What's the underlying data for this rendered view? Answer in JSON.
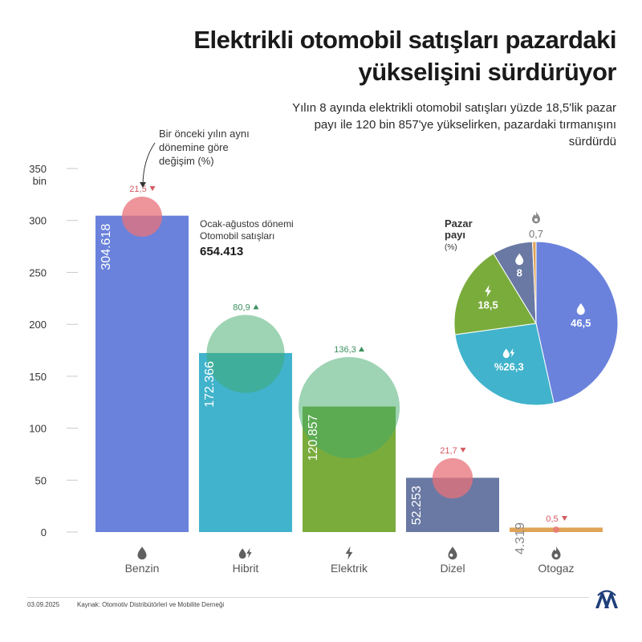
{
  "title": "Elektrikli otomobil satışları pazardaki yükselişini sürdürüyor",
  "subtitle": "Yılın 8 ayında elektrikli otomobil satışları yüzde 18,5'lik pazar payı ile 120 bin 857'ye yükselirken, pazardaki tırmanışını sürdürdü",
  "annotation_change": [
    "Bir önceki yılın aynı",
    "dönemine göre",
    "değişim (%)"
  ],
  "total_label": [
    "Ocak-ağustos dönemi",
    "Otomobil satışları"
  ],
  "total_value": "654.413",
  "pie_title": [
    "Pazar",
    "payı",
    "(%)"
  ],
  "footer": {
    "date": "03.09.2025",
    "source": "Kaynak: Otomotiv Distribütörleri ve Mobilite Derneği"
  },
  "colors": {
    "up": "#3daa6a",
    "down": "#e8727a",
    "up_text": "#3a8f5c",
    "down_text": "#d45a62"
  },
  "chart_data": [
    {
      "type": "bar",
      "categories": [
        "Benzin",
        "Hibrit",
        "Elektrik",
        "Dizel",
        "Otogaz"
      ],
      "icons": [
        "drop-icon",
        "hybrid-icon",
        "bolt-icon",
        "diesel-drop-icon",
        "flame-icon"
      ],
      "values": [
        304618,
        172366,
        120857,
        52253,
        4319
      ],
      "value_labels": [
        "304.618",
        "172.366",
        "120.857",
        "52.253",
        "4.319"
      ],
      "colors": [
        "#6a82dc",
        "#41b3cc",
        "#7aac3c",
        "#6979a3",
        "#e0a458"
      ],
      "change": [
        {
          "label": "21,5",
          "direction": "down",
          "value": -21.5
        },
        {
          "label": "80,9",
          "direction": "up",
          "value": 80.9
        },
        {
          "label": "136,3",
          "direction": "up",
          "value": 136.3
        },
        {
          "label": "21,7",
          "direction": "down",
          "value": -21.7
        },
        {
          "label": "0,5",
          "direction": "down",
          "value": -0.5
        }
      ],
      "yticks": [
        "0",
        "50",
        "100",
        "150",
        "200",
        "250",
        "300",
        "350"
      ],
      "ytick_values": [
        0,
        50,
        100,
        150,
        200,
        250,
        300,
        350
      ],
      "ylabel_unit": "bin",
      "ylim": [
        0,
        350000
      ],
      "grid": false,
      "legend": "none"
    },
    {
      "type": "pie",
      "labels": [
        "Benzin",
        "Hibrit",
        "Elektrik",
        "Dizel",
        "Otogaz"
      ],
      "values": [
        46.5,
        26.3,
        18.5,
        8,
        0.7
      ],
      "value_labels": [
        "46,5",
        "%26,3",
        "18,5",
        "8",
        "0,7"
      ],
      "icons": [
        "drop-icon",
        "hybrid-icon",
        "bolt-icon",
        "diesel-drop-icon",
        "flame-icon"
      ],
      "colors": [
        "#6a82dc",
        "#41b3cc",
        "#7aac3c",
        "#6979a3",
        "#e0a458"
      ]
    }
  ]
}
